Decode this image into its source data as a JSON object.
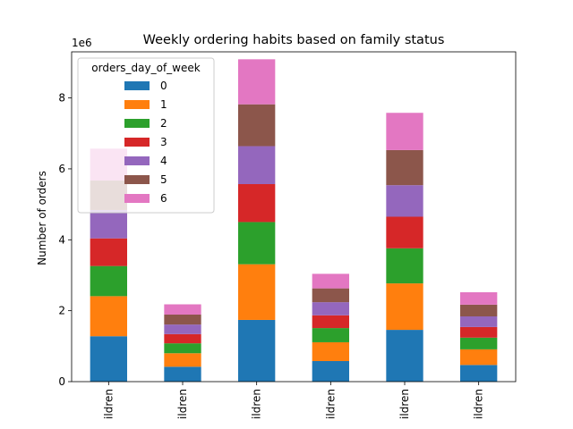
{
  "chart_data": {
    "type": "bar",
    "stacked": true,
    "title": "Weekly ordering habits based on family status",
    "xlabel": "",
    "ylabel": "Number of orders",
    "scale_label": "1e6",
    "ylim": [
      0,
      9300000
    ],
    "yticks": [
      0,
      2,
      4,
      6,
      8
    ],
    "categories": [
      "ildren",
      "ildren",
      "ildren",
      "ildren",
      "ildren",
      "ildren"
    ],
    "legend": {
      "title": "orders_day_of_week",
      "placement": "upper-left"
    },
    "series": [
      {
        "name": "0",
        "color": "#1f77b4",
        "values": [
          1280000,
          420000,
          1740000,
          580000,
          1460000,
          470000
        ]
      },
      {
        "name": "1",
        "color": "#ff7f0e",
        "values": [
          1130000,
          380000,
          1570000,
          530000,
          1310000,
          440000
        ]
      },
      {
        "name": "2",
        "color": "#2ca02c",
        "values": [
          850000,
          280000,
          1190000,
          400000,
          990000,
          330000
        ]
      },
      {
        "name": "3",
        "color": "#d62728",
        "values": [
          780000,
          260000,
          1070000,
          360000,
          890000,
          300000
        ]
      },
      {
        "name": "4",
        "color": "#9467bd",
        "values": [
          800000,
          270000,
          1070000,
          370000,
          890000,
          300000
        ]
      },
      {
        "name": "5",
        "color": "#8c564b",
        "values": [
          830000,
          280000,
          1180000,
          390000,
          990000,
          330000
        ]
      },
      {
        "name": "6",
        "color": "#e377c2",
        "values": [
          900000,
          290000,
          1270000,
          410000,
          1050000,
          350000
        ]
      }
    ]
  }
}
